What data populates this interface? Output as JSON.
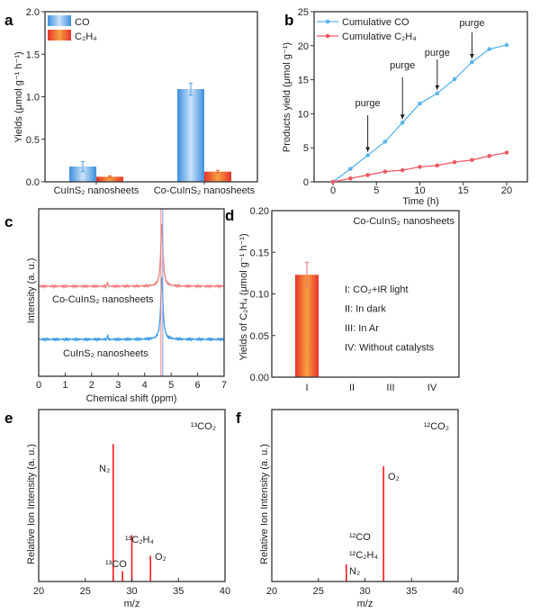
{
  "chart_data": [
    {
      "panel": "a",
      "type": "bar",
      "categories": [
        "CuInS₂ nanosheets",
        "Co-CuInS₂ nanosheets"
      ],
      "series": [
        {
          "name": "CO",
          "values": [
            0.18,
            1.09
          ],
          "errors": [
            0.06,
            0.07
          ],
          "color": "#4a9be0"
        },
        {
          "name": "C₂H₄",
          "values": [
            0.06,
            0.12
          ],
          "errors": [
            0.01,
            0.015
          ],
          "color": "#ee5a2a"
        }
      ],
      "ylabel": "Yields (μmol g⁻¹ h⁻¹)",
      "ylim": [
        0,
        2.0
      ],
      "yticks": [
        "0.0",
        "0.5",
        "1.0",
        "1.5",
        "2.0"
      ],
      "legend": "top-left"
    },
    {
      "panel": "b",
      "type": "line",
      "x": [
        0,
        2,
        4,
        6,
        8,
        10,
        12,
        14,
        16,
        18,
        20
      ],
      "series": [
        {
          "name": "Cumulative CO",
          "values": [
            0,
            1.9,
            3.9,
            5.9,
            8.7,
            11.5,
            13.0,
            15.1,
            17.6,
            19.5,
            20.1
          ],
          "color": "#5ab4ec"
        },
        {
          "name": "Cumulative C₂H₄",
          "values": [
            0,
            0.5,
            1.0,
            1.5,
            1.7,
            2.2,
            2.4,
            2.9,
            3.2,
            3.8,
            4.3
          ],
          "color": "#ec5a63"
        }
      ],
      "annotations": [
        {
          "text": "purge",
          "x": 4
        },
        {
          "text": "purge",
          "x": 8
        },
        {
          "text": "purge",
          "x": 12
        },
        {
          "text": "purge",
          "x": 16
        }
      ],
      "xlabel": "Time (h)",
      "ylabel": "Products yield (μmol g⁻¹)",
      "xticks": [
        0,
        5,
        10,
        15,
        20
      ],
      "yticks": [
        0,
        5,
        10,
        15,
        20,
        25
      ],
      "ylim": [
        0,
        25
      ],
      "legend": "top-left"
    },
    {
      "panel": "c",
      "type": "line",
      "series": [
        {
          "name": "Co-CuInS₂ nanosheets",
          "peaks": [
            2.6,
            4.65
          ],
          "color": "#f08080"
        },
        {
          "name": "CuInS₂ nanosheets",
          "peaks": [
            2.6,
            4.65
          ],
          "color": "#3a9be6"
        }
      ],
      "xlabel": "Chemical shift (ppm)",
      "ylabel": "Intensity (a. u.)",
      "xticks": [
        0,
        1,
        2,
        3,
        4,
        5,
        6,
        7
      ],
      "xlim": [
        0,
        7
      ]
    },
    {
      "panel": "d",
      "type": "bar",
      "title": "Co-CuInS₂ nanosheets",
      "categories": [
        "I",
        "II",
        "III",
        "IV"
      ],
      "values": [
        0.123,
        0,
        0,
        0
      ],
      "errors": [
        0.015,
        0,
        0,
        0
      ],
      "color": "#ee5a2a",
      "ylabel": "Yields of C₂H₄ (μmol g⁻¹ h⁻¹)",
      "ylim": [
        0,
        0.2
      ],
      "yticks": [
        "0.00",
        "0.05",
        "0.10",
        "0.15",
        "0.20"
      ],
      "legend_items": [
        "I: CO₂+IR light",
        "II: In dark",
        "III: In Ar",
        "IV: Without catalysts"
      ]
    },
    {
      "panel": "e",
      "type": "bar",
      "title": "¹³CO₂",
      "x": [
        28,
        29,
        30,
        32
      ],
      "values": [
        0.8,
        0.06,
        0.27,
        0.15
      ],
      "labels": [
        "N₂",
        "¹³CO",
        "¹³C₂H₄",
        "O₂"
      ],
      "color": "#ff1a1a",
      "xlabel": "m/z",
      "ylabel": "Relative Ion Intensity (a. u.)",
      "xticks": [
        20,
        25,
        30,
        35,
        40
      ],
      "xlim": [
        20,
        40
      ]
    },
    {
      "panel": "f",
      "type": "bar",
      "title": "¹²CO₂",
      "x": [
        28,
        32
      ],
      "values": [
        0.1,
        0.67
      ],
      "labels": [
        "N₂",
        "O₂"
      ],
      "extra_labels": [
        "¹²CO",
        "¹²C₂H₄"
      ],
      "color": "#ff1a1a",
      "xlabel": "m/z",
      "ylabel": "Relative Ion Intensity (a. u.)",
      "xticks": [
        20,
        25,
        30,
        35,
        40
      ],
      "xlim": [
        20,
        40
      ]
    }
  ]
}
